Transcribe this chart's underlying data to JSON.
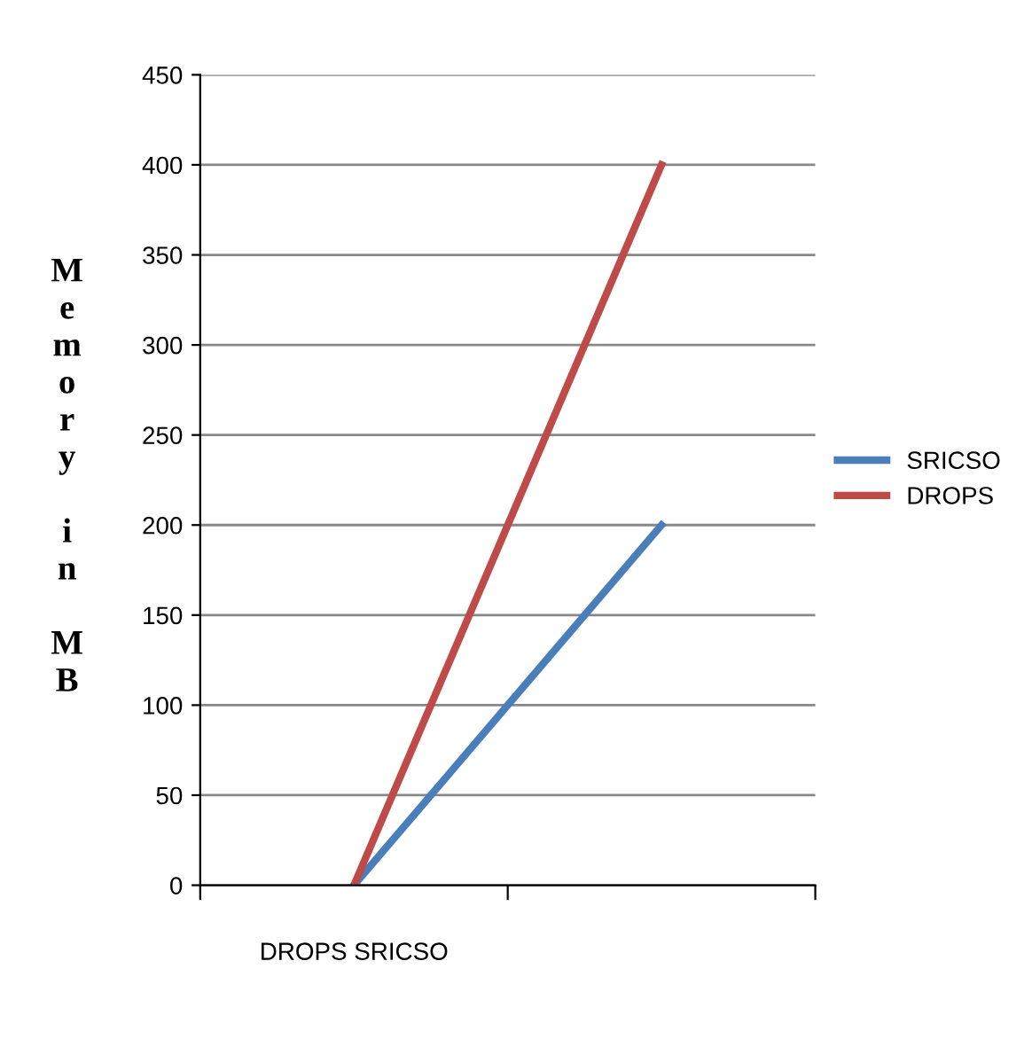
{
  "chart_data": {
    "type": "line",
    "ylabel": "Memory in MB",
    "categories": [
      "DROPS SRICSO",
      null
    ],
    "series": [
      {
        "name": "SRICSO",
        "color": "#4a7ebb",
        "values": [
          0,
          200
        ]
      },
      {
        "name": "DROPS",
        "color": "#be4b48",
        "values": [
          0,
          400
        ]
      }
    ],
    "ylim": [
      0,
      450
    ],
    "yticks": [
      0,
      50,
      100,
      150,
      200,
      250,
      300,
      350,
      400,
      450
    ],
    "grid": "y",
    "legend": "right",
    "marker": "none"
  }
}
